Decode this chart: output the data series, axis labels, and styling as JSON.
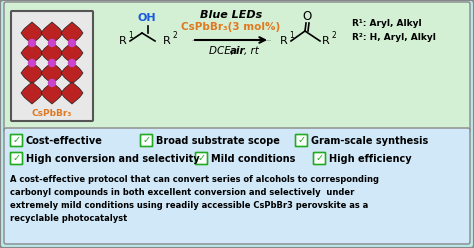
{
  "bg_color": "#b8e8e8",
  "top_section_color": "#d4f0d4",
  "bottom_section_color": "#d0e8f8",
  "border_color": "#888888",
  "green_check_color": "#22aa22",
  "orange_color": "#e07820",
  "blue_color": "#1a5adc",
  "black": "#000000",
  "red_dark": "#bb2222",
  "purple_color": "#cc44cc",
  "check_items_row1": [
    "Cost-effective",
    "Broad substrate scope",
    "Gram-scale synthesis"
  ],
  "check_items_row2": [
    "High conversion and selectivity",
    "Mild conditions",
    "High efficiency"
  ],
  "desc_lines": [
    "A cost-effective protocol that can convert series of alcohols to corresponding",
    "carbonyl compounds in both excellent conversion and selectively  under",
    "extremely mild conditions using readily accessible CsPbBr3 perovskite as a",
    "recyclable photocatalyst"
  ],
  "reaction_line1": "Blue LEDs",
  "reaction_line2": "CsPbBr₃(3 mol%)",
  "reaction_line3_parts": [
    "DCE, ",
    "air",
    ", rt"
  ],
  "r1_label": "R",
  "r2_label": "R",
  "r1_sup": "1",
  "r2_sup": "2",
  "r1_note": "R¹: Aryl, Alkyl",
  "r2_note": "R²: H, Aryl, Alkyl",
  "cspbbr3_label": "CsPbBr₃",
  "oh_label": "OH"
}
